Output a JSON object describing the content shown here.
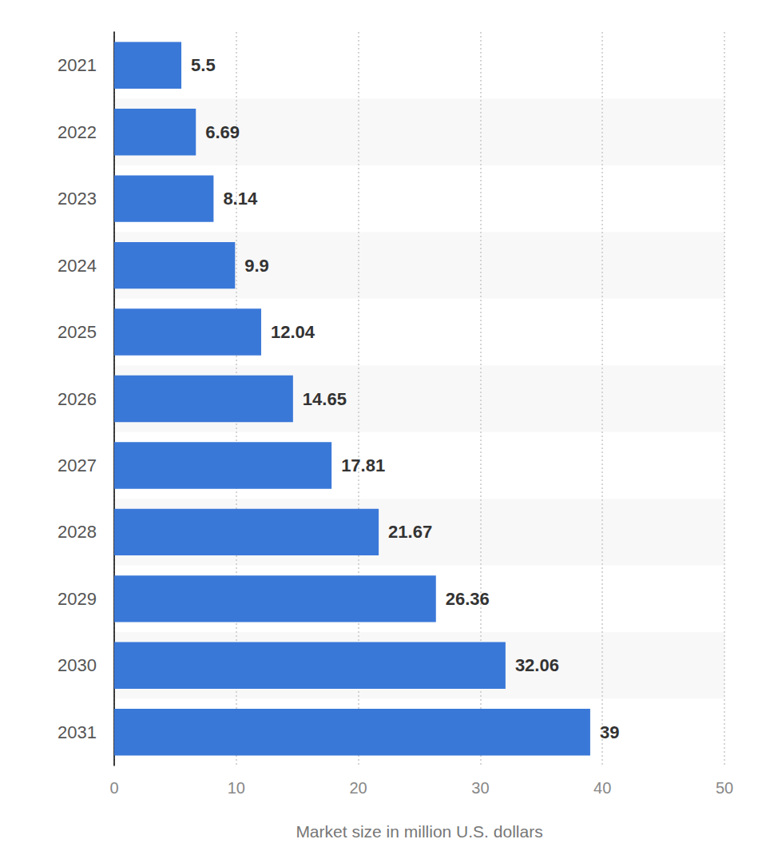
{
  "chart_data": {
    "type": "bar",
    "orientation": "horizontal",
    "x_label": "Market size in million U.S. dollars",
    "categories": [
      "2021",
      "2022",
      "2023",
      "2024",
      "2025",
      "2026",
      "2027",
      "2028",
      "2029",
      "2030",
      "2031"
    ],
    "values": [
      5.5,
      6.69,
      8.14,
      9.9,
      12.04,
      14.65,
      17.81,
      21.67,
      26.36,
      32.06,
      39
    ],
    "color": "#3a78d8",
    "xlim": [
      0,
      50
    ],
    "xticks": [
      0,
      10,
      20,
      30,
      40,
      50
    ],
    "grid": true,
    "data_labels": true
  }
}
